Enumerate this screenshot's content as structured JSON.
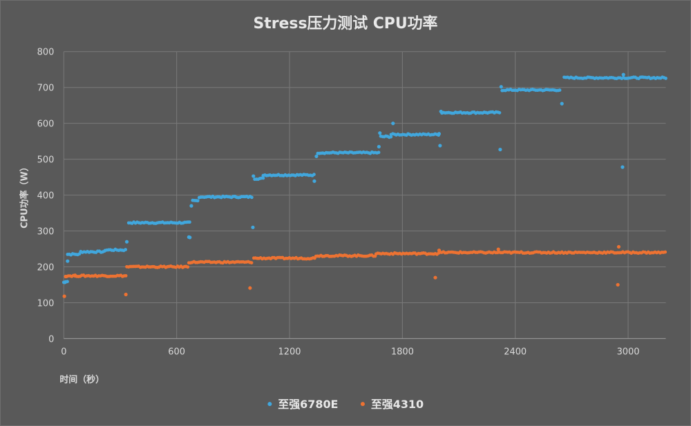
{
  "chart_data": {
    "type": "scatter",
    "title": "Stress压力测试 CPU功率",
    "xlabel": "时间（秒）",
    "ylabel": "CPU功率（W）",
    "xlim": [
      0,
      3200
    ],
    "ylim": [
      0,
      800
    ],
    "x_ticks": [
      0,
      600,
      1200,
      1800,
      2400,
      3000
    ],
    "y_ticks": [
      0,
      100,
      200,
      300,
      400,
      500,
      600,
      700,
      800
    ],
    "grid": true,
    "legend_position": "bottom",
    "series": [
      {
        "name": "至强6780E",
        "color": "#41a7dd",
        "steps": [
          {
            "start": 0,
            "end": 10,
            "value": 157
          },
          {
            "start": 10,
            "end": 20,
            "value": 160
          },
          {
            "start": 20,
            "end": 90,
            "value": 235
          },
          {
            "start": 90,
            "end": 220,
            "value": 242
          },
          {
            "start": 220,
            "end": 335,
            "value": 247
          },
          {
            "start": 345,
            "end": 670,
            "value": 323
          },
          {
            "start": 685,
            "end": 720,
            "value": 384
          },
          {
            "start": 720,
            "end": 1000,
            "value": 395
          },
          {
            "start": 1015,
            "end": 1060,
            "value": 446
          },
          {
            "start": 1060,
            "end": 1335,
            "value": 456
          },
          {
            "start": 1350,
            "end": 1680,
            "value": 518
          },
          {
            "start": 1685,
            "end": 1740,
            "value": 563
          },
          {
            "start": 1740,
            "end": 2000,
            "value": 569
          },
          {
            "start": 2010,
            "end": 2320,
            "value": 630
          },
          {
            "start": 2330,
            "end": 2640,
            "value": 693
          },
          {
            "start": 2660,
            "end": 3200,
            "value": 727
          }
        ],
        "outliers": [
          {
            "x": 5,
            "y": 157
          },
          {
            "x": 20,
            "y": 216
          },
          {
            "x": 335,
            "y": 270
          },
          {
            "x": 665,
            "y": 283
          },
          {
            "x": 670,
            "y": 282
          },
          {
            "x": 678,
            "y": 370
          },
          {
            "x": 1005,
            "y": 310
          },
          {
            "x": 1008,
            "y": 453
          },
          {
            "x": 1332,
            "y": 439
          },
          {
            "x": 1343,
            "y": 508
          },
          {
            "x": 1675,
            "y": 535
          },
          {
            "x": 1680,
            "y": 573
          },
          {
            "x": 1750,
            "y": 600
          },
          {
            "x": 1995,
            "y": 571
          },
          {
            "x": 2000,
            "y": 538
          },
          {
            "x": 2005,
            "y": 633
          },
          {
            "x": 2320,
            "y": 527
          },
          {
            "x": 2325,
            "y": 702
          },
          {
            "x": 2648,
            "y": 655
          },
          {
            "x": 2970,
            "y": 478
          },
          {
            "x": 2975,
            "y": 736
          }
        ]
      },
      {
        "name": "至强4310",
        "color": "#ed7232",
        "steps": [
          {
            "start": 15,
            "end": 60,
            "value": 175
          },
          {
            "start": 60,
            "end": 335,
            "value": 175
          },
          {
            "start": 335,
            "end": 660,
            "value": 200
          },
          {
            "start": 665,
            "end": 1000,
            "value": 213
          },
          {
            "start": 1010,
            "end": 1340,
            "value": 224
          },
          {
            "start": 1340,
            "end": 1660,
            "value": 231
          },
          {
            "start": 1660,
            "end": 2000,
            "value": 237
          },
          {
            "start": 2000,
            "end": 3200,
            "value": 240
          }
        ],
        "outliers": [
          {
            "x": 3,
            "y": 118
          },
          {
            "x": 10,
            "y": 173
          },
          {
            "x": 330,
            "y": 123
          },
          {
            "x": 990,
            "y": 141
          },
          {
            "x": 1975,
            "y": 170
          },
          {
            "x": 1995,
            "y": 246
          },
          {
            "x": 2310,
            "y": 249
          },
          {
            "x": 2945,
            "y": 150
          },
          {
            "x": 2950,
            "y": 256
          }
        ]
      }
    ]
  }
}
